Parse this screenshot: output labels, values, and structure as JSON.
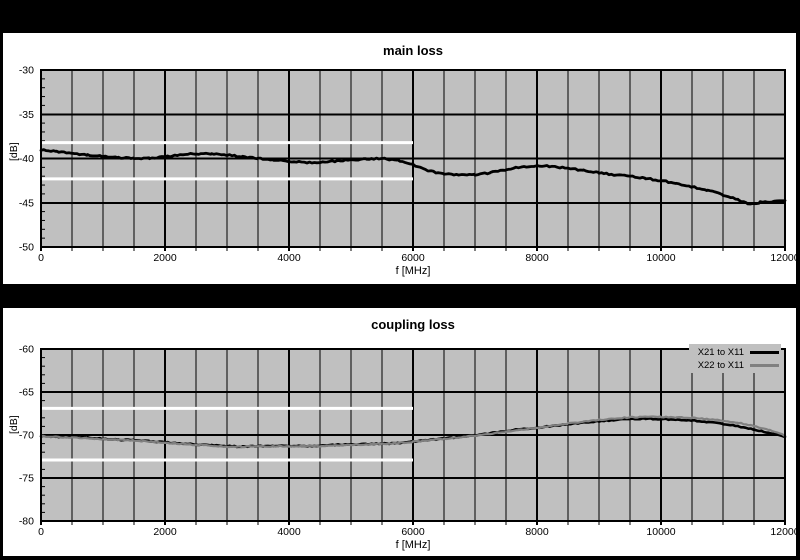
{
  "page": {
    "background": "#000000"
  },
  "colors": {
    "panel_bg": "#ffffff",
    "plot_bg": "#c0c0c0",
    "grid": "#000000",
    "limit_line": "#ffffff",
    "series_black": "#000000",
    "series_gray": "#808080"
  },
  "chart_data": [
    {
      "type": "line",
      "title": "main loss",
      "xlabel": "f [MHz]",
      "ylabel": "[dB]",
      "xlim": [
        0,
        12000
      ],
      "ylim": [
        -50,
        -30
      ],
      "xticks": [
        0,
        2000,
        4000,
        6000,
        8000,
        10000,
        12000
      ],
      "yticks": [
        -30,
        -35,
        -40,
        -45,
        -50
      ],
      "x_grid_step": 500,
      "y_minor_step": 1,
      "grid": true,
      "legend": false,
      "limit_lines": {
        "color": "#ffffff",
        "x_range": [
          0,
          6000
        ],
        "values": [
          -38.2,
          -42.3
        ]
      },
      "series": [
        {
          "color": "#000000",
          "points": [
            [
              0,
              -39.0
            ],
            [
              250,
              -39.2
            ],
            [
              500,
              -39.45
            ],
            [
              750,
              -39.6
            ],
            [
              1000,
              -39.75
            ],
            [
              1250,
              -39.9
            ],
            [
              1500,
              -40.0
            ],
            [
              1750,
              -39.95
            ],
            [
              2000,
              -39.8
            ],
            [
              2250,
              -39.6
            ],
            [
              2500,
              -39.45
            ],
            [
              2750,
              -39.5
            ],
            [
              3000,
              -39.6
            ],
            [
              3250,
              -39.8
            ],
            [
              3500,
              -40.0
            ],
            [
              3750,
              -40.2
            ],
            [
              4000,
              -40.3
            ],
            [
              4250,
              -40.45
            ],
            [
              4500,
              -40.45
            ],
            [
              4750,
              -40.3
            ],
            [
              5000,
              -40.15
            ],
            [
              5250,
              -40.05
            ],
            [
              5500,
              -40.0
            ],
            [
              5750,
              -40.2
            ],
            [
              6000,
              -40.7
            ],
            [
              6250,
              -41.4
            ],
            [
              6500,
              -41.75
            ],
            [
              6750,
              -41.85
            ],
            [
              7000,
              -41.85
            ],
            [
              7250,
              -41.6
            ],
            [
              7500,
              -41.25
            ],
            [
              7750,
              -40.95
            ],
            [
              8000,
              -40.8
            ],
            [
              8250,
              -40.9
            ],
            [
              8500,
              -41.1
            ],
            [
              8750,
              -41.35
            ],
            [
              9000,
              -41.6
            ],
            [
              9250,
              -41.85
            ],
            [
              9500,
              -42.0
            ],
            [
              9750,
              -42.25
            ],
            [
              10000,
              -42.5
            ],
            [
              10250,
              -42.8
            ],
            [
              10500,
              -43.2
            ],
            [
              10750,
              -43.6
            ],
            [
              11000,
              -44.1
            ],
            [
              11250,
              -44.7
            ],
            [
              11400,
              -45.05
            ],
            [
              11500,
              -45.1
            ],
            [
              11600,
              -44.95
            ],
            [
              11750,
              -44.9
            ],
            [
              12000,
              -44.75
            ]
          ]
        }
      ]
    },
    {
      "type": "line",
      "title": "coupling loss",
      "xlabel": "f [MHz]",
      "ylabel": "[dB]",
      "xlim": [
        0,
        12000
      ],
      "ylim": [
        -80,
        -60
      ],
      "xticks": [
        0,
        2000,
        4000,
        6000,
        8000,
        10000,
        12000
      ],
      "yticks": [
        -60,
        -65,
        -70,
        -75,
        -80
      ],
      "x_grid_step": 500,
      "y_minor_step": 1,
      "grid": true,
      "legend": true,
      "legend_position": "top-right",
      "limit_lines": {
        "color": "#ffffff",
        "x_range": [
          0,
          6000
        ],
        "values": [
          -66.9,
          -72.9
        ]
      },
      "series": [
        {
          "name": "X21 to X11",
          "color": "#000000",
          "points": [
            [
              0,
              -70.1
            ],
            [
              250,
              -70.2
            ],
            [
              500,
              -70.25
            ],
            [
              750,
              -70.3
            ],
            [
              1000,
              -70.45
            ],
            [
              1250,
              -70.55
            ],
            [
              1500,
              -70.6
            ],
            [
              1750,
              -70.7
            ],
            [
              2000,
              -70.85
            ],
            [
              2250,
              -71.0
            ],
            [
              2500,
              -71.1
            ],
            [
              2750,
              -71.2
            ],
            [
              3000,
              -71.3
            ],
            [
              3250,
              -71.35
            ],
            [
              3500,
              -71.3
            ],
            [
              3750,
              -71.3
            ],
            [
              4000,
              -71.25
            ],
            [
              4250,
              -71.3
            ],
            [
              4500,
              -71.25
            ],
            [
              4750,
              -71.15
            ],
            [
              5000,
              -71.1
            ],
            [
              5250,
              -71.05
            ],
            [
              5500,
              -71.0
            ],
            [
              5750,
              -70.95
            ],
            [
              6000,
              -70.75
            ],
            [
              6250,
              -70.6
            ],
            [
              6500,
              -70.4
            ],
            [
              6750,
              -70.25
            ],
            [
              7000,
              -70.05
            ],
            [
              7250,
              -69.8
            ],
            [
              7500,
              -69.55
            ],
            [
              7750,
              -69.3
            ],
            [
              8000,
              -69.15
            ],
            [
              8250,
              -68.95
            ],
            [
              8500,
              -68.75
            ],
            [
              8750,
              -68.55
            ],
            [
              9000,
              -68.4
            ],
            [
              9250,
              -68.25
            ],
            [
              9500,
              -68.15
            ],
            [
              9750,
              -68.1
            ],
            [
              10000,
              -68.15
            ],
            [
              10250,
              -68.2
            ],
            [
              10500,
              -68.3
            ],
            [
              10750,
              -68.5
            ],
            [
              11000,
              -68.7
            ],
            [
              11250,
              -69.0
            ],
            [
              11500,
              -69.35
            ],
            [
              11750,
              -69.75
            ],
            [
              12000,
              -70.2
            ]
          ]
        },
        {
          "name": "X22 to X11",
          "color": "#808080",
          "points": [
            [
              0,
              -70.15
            ],
            [
              500,
              -70.3
            ],
            [
              1000,
              -70.5
            ],
            [
              1500,
              -70.65
            ],
            [
              2000,
              -70.9
            ],
            [
              2500,
              -71.15
            ],
            [
              3000,
              -71.35
            ],
            [
              3500,
              -71.35
            ],
            [
              4000,
              -71.3
            ],
            [
              4500,
              -71.3
            ],
            [
              5000,
              -71.15
            ],
            [
              5500,
              -71.05
            ],
            [
              6000,
              -70.8
            ],
            [
              6500,
              -70.45
            ],
            [
              7000,
              -70.1
            ],
            [
              7500,
              -69.6
            ],
            [
              8000,
              -69.15
            ],
            [
              8250,
              -68.9
            ],
            [
              8500,
              -68.65
            ],
            [
              8750,
              -68.45
            ],
            [
              9000,
              -68.25
            ],
            [
              9250,
              -68.1
            ],
            [
              9500,
              -67.95
            ],
            [
              9750,
              -67.9
            ],
            [
              10000,
              -67.9
            ],
            [
              10250,
              -67.95
            ],
            [
              10500,
              -68.0
            ],
            [
              10750,
              -68.15
            ],
            [
              11000,
              -68.35
            ],
            [
              11250,
              -68.6
            ],
            [
              11500,
              -68.95
            ],
            [
              11750,
              -69.45
            ],
            [
              12000,
              -70.05
            ]
          ]
        }
      ]
    }
  ]
}
